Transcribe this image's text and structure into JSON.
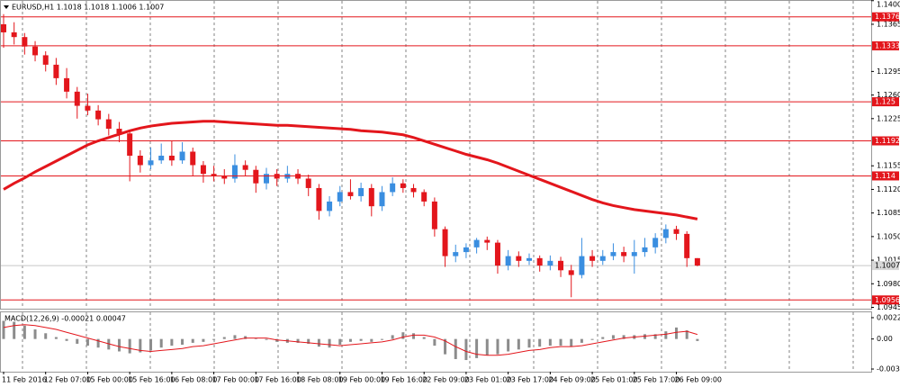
{
  "chart_data": {
    "type": "candlestick",
    "title": "EURUSD,H1  1.1018 1.1018 1.1006 1.1007",
    "up_color": "#3a8ee0",
    "down_color": "#e3161c",
    "categories": [
      "11 Feb 2016",
      null,
      null,
      null,
      "12 Feb 07:00",
      null,
      null,
      null,
      "15 Feb 00:00",
      null,
      null,
      null,
      "15 Feb 16:00",
      null,
      null,
      null,
      "16 Feb 08:00",
      null,
      null,
      null,
      "17 Feb 00:00",
      null,
      null,
      null,
      "17 Feb 16:00",
      null,
      null,
      null,
      "18 Feb 08:00",
      null,
      null,
      null,
      "19 Feb 00:00",
      null,
      null,
      null,
      "19 Feb 16:00",
      null,
      null,
      null,
      "22 Feb 09:00",
      null,
      null,
      null,
      "23 Feb 01:00",
      null,
      null,
      null,
      "23 Feb 17:00",
      null,
      null,
      null,
      "24 Feb 09:00",
      null,
      null,
      null,
      "25 Feb 01:00",
      null,
      null,
      null,
      "25 Feb 17:00",
      null,
      null,
      null,
      "26 Feb 09:00",
      null,
      null
    ],
    "candles": [
      [
        1.1365,
        1.138,
        1.133,
        1.1353
      ],
      [
        1.1353,
        1.1368,
        1.1335,
        1.1346
      ],
      [
        1.1346,
        1.1352,
        1.132,
        1.1332
      ],
      [
        1.1332,
        1.134,
        1.131,
        1.1319
      ],
      [
        1.1319,
        1.1325,
        1.1295,
        1.1305
      ],
      [
        1.1305,
        1.1315,
        1.1275,
        1.1285
      ],
      [
        1.1285,
        1.13,
        1.1255,
        1.1265
      ],
      [
        1.1265,
        1.1272,
        1.1225,
        1.1244
      ],
      [
        1.1244,
        1.1262,
        1.123,
        1.1237
      ],
      [
        1.1237,
        1.1245,
        1.1215,
        1.1224
      ],
      [
        1.1224,
        1.1232,
        1.12,
        1.121
      ],
      [
        1.121,
        1.122,
        1.119,
        1.1203
      ],
      [
        1.1203,
        1.1208,
        1.1132,
        1.117
      ],
      [
        1.117,
        1.1178,
        1.1145,
        1.1156
      ],
      [
        1.1156,
        1.1182,
        1.115,
        1.1163
      ],
      [
        1.1163,
        1.1188,
        1.1158,
        1.117
      ],
      [
        1.117,
        1.1192,
        1.1155,
        1.1163
      ],
      [
        1.1163,
        1.119,
        1.1158,
        1.1176
      ],
      [
        1.1176,
        1.1182,
        1.114,
        1.1156
      ],
      [
        1.1156,
        1.1162,
        1.113,
        1.1143
      ],
      [
        1.1143,
        1.1155,
        1.1132,
        1.114
      ],
      [
        1.114,
        1.115,
        1.1128,
        1.1136
      ],
      [
        1.1136,
        1.1172,
        1.113,
        1.1156
      ],
      [
        1.1156,
        1.1163,
        1.114,
        1.1149
      ],
      [
        1.1149,
        1.1155,
        1.1115,
        1.1129
      ],
      [
        1.1129,
        1.1152,
        1.112,
        1.1143
      ],
      [
        1.1143,
        1.115,
        1.1125,
        1.1136
      ],
      [
        1.1136,
        1.1155,
        1.113,
        1.1143
      ],
      [
        1.1143,
        1.115,
        1.1128,
        1.1136
      ],
      [
        1.1136,
        1.1142,
        1.111,
        1.1122
      ],
      [
        1.1122,
        1.1128,
        1.1075,
        1.1088
      ],
      [
        1.1088,
        1.111,
        1.108,
        1.1102
      ],
      [
        1.1102,
        1.1125,
        1.1095,
        1.1116
      ],
      [
        1.1116,
        1.1135,
        1.1105,
        1.111
      ],
      [
        1.111,
        1.113,
        1.1102,
        1.1122
      ],
      [
        1.1122,
        1.1128,
        1.108,
        1.1095
      ],
      [
        1.1095,
        1.1125,
        1.1088,
        1.1116
      ],
      [
        1.1116,
        1.1138,
        1.111,
        1.1129
      ],
      [
        1.1129,
        1.1135,
        1.1115,
        1.1122
      ],
      [
        1.1122,
        1.1128,
        1.1108,
        1.1116
      ],
      [
        1.1116,
        1.112,
        1.1095,
        1.1102
      ],
      [
        1.1102,
        1.1108,
        1.105,
        1.1061
      ],
      [
        1.1061,
        1.1065,
        1.1005,
        1.1021
      ],
      [
        1.1021,
        1.1038,
        1.1012,
        1.1027
      ],
      [
        1.1027,
        1.104,
        1.1018,
        1.1034
      ],
      [
        1.1034,
        1.1048,
        1.1025,
        1.1045
      ],
      [
        1.1045,
        1.105,
        1.103,
        1.1041
      ],
      [
        1.1041,
        1.1045,
        1.0995,
        1.1007
      ],
      [
        1.1007,
        1.103,
        1.1,
        1.1021
      ],
      [
        1.1021,
        1.1028,
        1.1005,
        1.1014
      ],
      [
        1.1014,
        1.1025,
        1.1008,
        1.1018
      ],
      [
        1.1018,
        1.1022,
        1.0998,
        1.1007
      ],
      [
        1.1007,
        1.1022,
        1.1,
        1.1014
      ],
      [
        1.1014,
        1.102,
        1.099,
        1.1
      ],
      [
        1.1,
        1.1008,
        1.096,
        1.0993
      ],
      [
        1.0993,
        1.1048,
        1.0988,
        1.1021
      ],
      [
        1.1021,
        1.103,
        1.1005,
        1.1014
      ],
      [
        1.1014,
        1.103,
        1.1008,
        1.1021
      ],
      [
        1.1021,
        1.104,
        1.1015,
        1.1027
      ],
      [
        1.1027,
        1.1035,
        1.1012,
        1.1021
      ],
      [
        1.1021,
        1.1045,
        1.0995,
        1.1027
      ],
      [
        1.1027,
        1.1048,
        1.102,
        1.1034
      ],
      [
        1.1034,
        1.1055,
        1.1025,
        1.1048
      ],
      [
        1.1048,
        1.1068,
        1.104,
        1.1061
      ],
      [
        1.1061,
        1.1066,
        1.1045,
        1.1054
      ],
      [
        1.1054,
        1.1058,
        1.1005,
        1.1018
      ],
      [
        1.1018,
        1.1018,
        1.1006,
        1.1007
      ]
    ],
    "ma": {
      "color": "#e3161c",
      "values": [
        1.112,
        1.1129,
        1.1137,
        1.1146,
        1.1154,
        1.1162,
        1.117,
        1.1178,
        1.1186,
        1.1192,
        1.1197,
        1.1202,
        1.1207,
        1.1211,
        1.1214,
        1.1216,
        1.1218,
        1.1219,
        1.122,
        1.1221,
        1.1221,
        1.122,
        1.1219,
        1.1218,
        1.1217,
        1.1216,
        1.1215,
        1.1215,
        1.1214,
        1.1213,
        1.1212,
        1.1211,
        1.121,
        1.1209,
        1.1207,
        1.1206,
        1.1205,
        1.1203,
        1.1201,
        1.1197,
        1.1192,
        1.1187,
        1.1182,
        1.1177,
        1.1172,
        1.1168,
        1.1164,
        1.1159,
        1.1153,
        1.1147,
        1.1141,
        1.1135,
        1.1129,
        1.1123,
        1.1117,
        1.1111,
        1.1105,
        1.11,
        1.1096,
        1.1093,
        1.109,
        1.1088,
        1.1086,
        1.1084,
        1.1082,
        1.1079,
        1.1076
      ]
    },
    "levels": [
      1.1376,
      1.1333,
      1.125,
      1.1192,
      1.114,
      1.0956
    ],
    "level_color": "#e3161c",
    "current_price": 1.1007,
    "ylim": [
      1.0943,
      1.1401
    ],
    "yticks": [
      {
        "value": 1.14,
        "label": "1.1400"
      },
      {
        "value": 1.1365,
        "label": "1.1365"
      },
      {
        "value": 1.1295,
        "label": "1.1295"
      },
      {
        "value": 1.126,
        "label": "1.1260"
      },
      {
        "value": 1.1225,
        "label": "1.1225"
      },
      {
        "value": 1.1155,
        "label": "1.1155"
      },
      {
        "value": 1.112,
        "label": "1.1120"
      },
      {
        "value": 1.1085,
        "label": "1.1085"
      },
      {
        "value": 1.105,
        "label": "1.1050"
      },
      {
        "value": 1.1015,
        "label": "1.1015"
      },
      {
        "value": 1.098,
        "label": "1.0980"
      },
      {
        "value": 1.0945,
        "label": "1.0945"
      }
    ],
    "macd": {
      "title": "MACD(12,26,9) -0.00021 0.00047",
      "hist_color": "#8c8c8c",
      "signal_color": "#e3161c",
      "histogram": [
        0.0019,
        0.0018,
        0.0014,
        0.001,
        0.0006,
        0.0002,
        -0.0002,
        -0.0005,
        -0.0007,
        -0.0009,
        -0.0011,
        -0.0013,
        -0.0015,
        -0.0014,
        -0.0012,
        -0.0009,
        -0.0007,
        -0.0006,
        -0.0004,
        -0.0003,
        -0.0001,
        0.0002,
        0.0004,
        0.0003,
        0.0001,
        -0.0001,
        -0.0003,
        -0.0004,
        -0.0004,
        -0.0005,
        -0.0008,
        -0.0009,
        -0.0006,
        -0.0003,
        -0.0002,
        -0.0003,
        -0.0001,
        0.0004,
        0.0007,
        0.0006,
        0.0002,
        -0.0007,
        -0.0016,
        -0.0021,
        -0.0022,
        -0.002,
        -0.0017,
        -0.0016,
        -0.0013,
        -0.0011,
        -0.0009,
        -0.0008,
        -0.0007,
        -0.0007,
        -0.0008,
        -0.0004,
        -0.0001,
        0.0002,
        0.0004,
        0.0004,
        0.0004,
        0.0005,
        0.0005,
        0.0008,
        0.0012,
        0.0009,
        -0.00021
      ],
      "signal": [
        0.0012,
        0.0014,
        0.0015,
        0.0014,
        0.0012,
        0.001,
        0.0007,
        0.0004,
        0.0001,
        -0.0002,
        -0.0005,
        -0.0008,
        -0.001,
        -0.0012,
        -0.0013,
        -0.0012,
        -0.0011,
        -0.001,
        -0.0008,
        -0.0007,
        -0.0005,
        -0.0003,
        -0.0001,
        0.0001,
        0.0001,
        0.0001,
        -0.0001,
        -0.0002,
        -0.0003,
        -0.0004,
        -0.0005,
        -0.0006,
        -0.0007,
        -0.0006,
        -0.0005,
        -0.0004,
        -0.0003,
        -0.0001,
        0.0002,
        0.0004,
        0.0004,
        0.0002,
        -0.0002,
        -0.0008,
        -0.0013,
        -0.0016,
        -0.0017,
        -0.0017,
        -0.0016,
        -0.0014,
        -0.0012,
        -0.0011,
        -0.0009,
        -0.0008,
        -0.0008,
        -0.0007,
        -0.0005,
        -0.0003,
        -0.0001,
        0.0001,
        0.0002,
        0.0003,
        0.0004,
        0.0005,
        0.0007,
        0.0008,
        0.00047
      ],
      "ylim": [
        -0.00342,
        0.00279
      ],
      "yticks": [
        0.00223,
        {
          "value": 0,
          "label": "0.00"
        },
        -0.00314
      ]
    }
  }
}
